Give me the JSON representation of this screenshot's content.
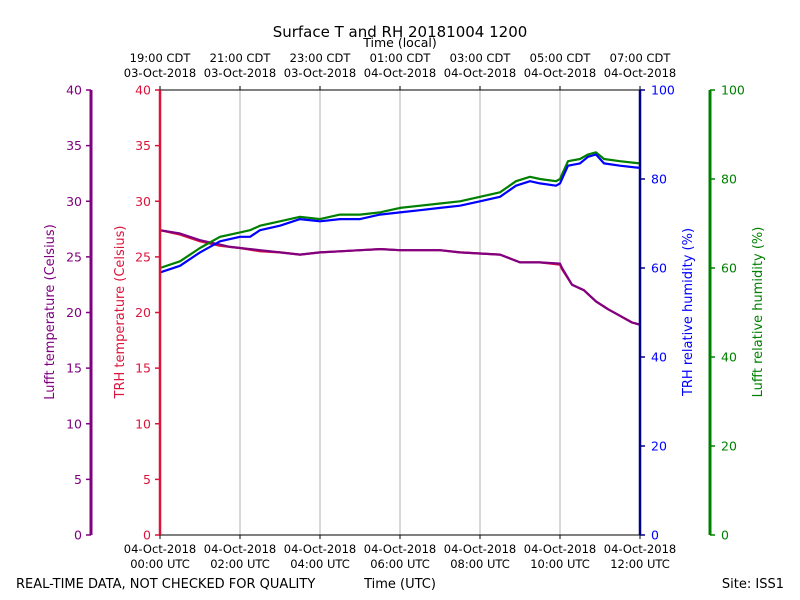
{
  "chart_data": {
    "type": "line",
    "title": "Surface T and RH 20181004 1200",
    "top_axis_title": "Time (local)",
    "bottom_axis_title": "Time (UTC)",
    "footer_left": "REAL-TIME DATA, NOT CHECKED FOR QUALITY",
    "footer_right": "Site: ISS1",
    "x_range_hours": [
      0,
      12
    ],
    "grid_hours": [
      2,
      4,
      6,
      8,
      10
    ],
    "x_ticks_bottom": [
      {
        "h": 0,
        "line1": "04-Oct-2018",
        "line2": "00:00 UTC"
      },
      {
        "h": 2,
        "line1": "04-Oct-2018",
        "line2": "02:00 UTC"
      },
      {
        "h": 4,
        "line1": "04-Oct-2018",
        "line2": "04:00 UTC"
      },
      {
        "h": 6,
        "line1": "04-Oct-2018",
        "line2": "06:00 UTC"
      },
      {
        "h": 8,
        "line1": "04-Oct-2018",
        "line2": "08:00 UTC"
      },
      {
        "h": 10,
        "line1": "04-Oct-2018",
        "line2": "10:00 UTC"
      },
      {
        "h": 12,
        "line1": "04-Oct-2018",
        "line2": "12:00 UTC"
      }
    ],
    "x_ticks_top": [
      {
        "h": 0,
        "line1": "19:00 CDT",
        "line2": "03-Oct-2018"
      },
      {
        "h": 2,
        "line1": "21:00 CDT",
        "line2": "03-Oct-2018"
      },
      {
        "h": 4,
        "line1": "23:00 CDT",
        "line2": "03-Oct-2018"
      },
      {
        "h": 6,
        "line1": "01:00 CDT",
        "line2": "04-Oct-2018"
      },
      {
        "h": 8,
        "line1": "03:00 CDT",
        "line2": "04-Oct-2018"
      },
      {
        "h": 10,
        "line1": "05:00 CDT",
        "line2": "04-Oct-2018"
      },
      {
        "h": 12,
        "line1": "07:00 CDT",
        "line2": "04-Oct-2018"
      }
    ],
    "axes": {
      "lufft_temp": {
        "label": "Lufft temperature (Celsius)",
        "range": [
          0,
          40
        ],
        "ticks": [
          0,
          5,
          10,
          15,
          20,
          25,
          30,
          35,
          40
        ],
        "color": "#800080"
      },
      "trh_temp": {
        "label": "TRH temperature (Celsius)",
        "range": [
          0,
          40
        ],
        "ticks": [
          0,
          5,
          10,
          15,
          20,
          25,
          30,
          35,
          40
        ],
        "color": "#dc143c"
      },
      "trh_rh": {
        "label": "TRH relative humidity (%)",
        "range": [
          0,
          100
        ],
        "ticks": [
          0,
          20,
          40,
          60,
          80,
          100
        ],
        "color": "#0000ff"
      },
      "lufft_rh": {
        "label": "Lufft relative humidity (%)",
        "range": [
          0,
          100
        ],
        "ticks": [
          0,
          20,
          40,
          60,
          80,
          100
        ],
        "color": "#008000"
      }
    },
    "series": [
      {
        "name": "TRH temperature",
        "axis": "trh_temp",
        "color": "#dc143c",
        "x": [
          0,
          0.5,
          1,
          1.25,
          1.5,
          1.75,
          2,
          2.5,
          3,
          3.5,
          4,
          4.5,
          5,
          5.5,
          6,
          6.5,
          7,
          7.5,
          8,
          8.5,
          9,
          9.5,
          10,
          10.05,
          10.3,
          10.6,
          10.9,
          11.2,
          11.5,
          11.8,
          12
        ],
        "values": [
          27.4,
          27.0,
          26.4,
          26.2,
          26.0,
          25.9,
          25.8,
          25.5,
          25.4,
          25.2,
          25.4,
          25.5,
          25.6,
          25.7,
          25.6,
          25.6,
          25.6,
          25.4,
          25.3,
          25.2,
          24.5,
          24.5,
          24.3,
          23.9,
          22.5,
          22.0,
          21.0,
          20.3,
          19.7,
          19.1,
          18.9
        ]
      },
      {
        "name": "Lufft temperature",
        "axis": "lufft_temp",
        "color": "#800080",
        "x": [
          0,
          0.5,
          1,
          1.25,
          1.5,
          1.75,
          2,
          2.5,
          3,
          3.5,
          4,
          4.5,
          5,
          5.5,
          6,
          6.5,
          7,
          7.5,
          8,
          8.5,
          9,
          9.5,
          10,
          10.05,
          10.3,
          10.6,
          10.9,
          11.2,
          11.5,
          11.8,
          12
        ],
        "values": [
          27.4,
          27.1,
          26.5,
          26.3,
          26.1,
          25.9,
          25.8,
          25.6,
          25.4,
          25.2,
          25.4,
          25.5,
          25.6,
          25.7,
          25.6,
          25.6,
          25.6,
          25.4,
          25.3,
          25.2,
          24.5,
          24.5,
          24.4,
          24.0,
          22.5,
          22.0,
          21.0,
          20.3,
          19.7,
          19.1,
          18.9
        ]
      },
      {
        "name": "Lufft relative humidity",
        "axis": "lufft_rh",
        "color": "#008000",
        "x": [
          0,
          0.5,
          1,
          1.5,
          2,
          2.25,
          2.5,
          3,
          3.5,
          4,
          4.5,
          5,
          5.5,
          6,
          6.5,
          7,
          7.5,
          8,
          8.5,
          8.9,
          9.25,
          9.5,
          9.9,
          10,
          10.2,
          10.5,
          10.7,
          10.9,
          11.1,
          11.5,
          12
        ],
        "values": [
          60.0,
          61.5,
          64.5,
          67.0,
          68.0,
          68.5,
          69.5,
          70.5,
          71.5,
          71.0,
          72.0,
          72.0,
          72.5,
          73.5,
          74.0,
          74.5,
          75.0,
          76.0,
          77.0,
          79.5,
          80.5,
          80.0,
          79.5,
          80.0,
          84.0,
          84.5,
          85.5,
          86.0,
          84.5,
          84.0,
          83.5
        ]
      },
      {
        "name": "TRH relative humidity",
        "axis": "trh_rh",
        "color": "#0000ff",
        "x": [
          0,
          0.5,
          1,
          1.5,
          2,
          2.25,
          2.5,
          3,
          3.5,
          4,
          4.5,
          5,
          5.5,
          6,
          6.5,
          7,
          7.5,
          8,
          8.5,
          8.9,
          9.25,
          9.5,
          9.9,
          10,
          10.2,
          10.5,
          10.7,
          10.9,
          11.1,
          11.5,
          12
        ],
        "values": [
          59.0,
          60.5,
          63.5,
          66.0,
          67.0,
          67.0,
          68.5,
          69.5,
          71.0,
          70.5,
          71.0,
          71.0,
          72.0,
          72.5,
          73.0,
          73.5,
          74.0,
          75.0,
          76.0,
          78.5,
          79.5,
          79.0,
          78.5,
          79.0,
          83.0,
          83.5,
          85.0,
          85.5,
          83.5,
          83.0,
          82.5
        ]
      }
    ]
  }
}
